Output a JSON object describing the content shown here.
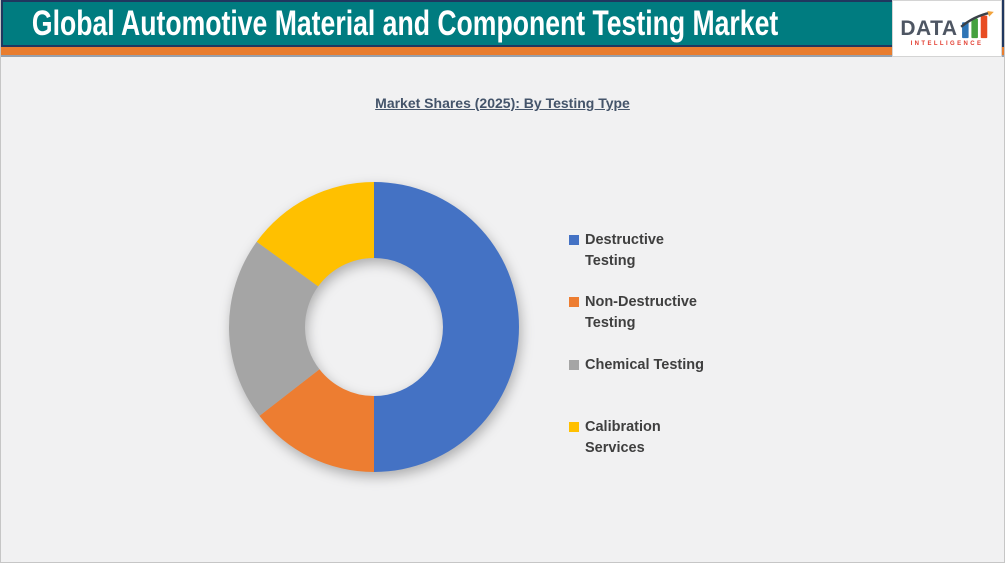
{
  "page": {
    "background": "#f1f1f2",
    "frame_border_color": "#c6c6c6"
  },
  "header": {
    "title": "Global Automotive Material and Component Testing Market",
    "banner_color": "#007c80",
    "banner_border_color": "#20375f",
    "stripe_color": "#e87d2f",
    "title_color": "#ffffff"
  },
  "logo": {
    "brand": "DATA",
    "tagline": "INTELLIGENCE",
    "brand_color": "#4e5663",
    "tagline_color": "#e23b2e",
    "bar_colors": [
      "#2e75b6",
      "#44a13f",
      "#e84c22"
    ],
    "arrow_color": "#3a4149",
    "arrowhead_color": "#f2a33c"
  },
  "chart": {
    "title": "Market Shares (2025): By Testing Type",
    "title_color": "#44546a",
    "legend_text_color": "#3f3f3f"
  },
  "chart_data": {
    "type": "pie",
    "variant": "donut",
    "title": "Market Shares (2025): By Testing Type",
    "categories": [
      "Destructive Testing",
      "Non-Destructive Testing",
      "Chemical Testing",
      "Calibration Services"
    ],
    "values": [
      50,
      14.5,
      20.5,
      15
    ],
    "unit": "percent",
    "colors": [
      "#4472C4",
      "#ED7D31",
      "#A5A5A5",
      "#FFC000"
    ],
    "start_angle_deg": 0,
    "direction": "clockwise",
    "donut_hole_ratio": 0.476,
    "legend_position": "right",
    "data_labels": false
  }
}
